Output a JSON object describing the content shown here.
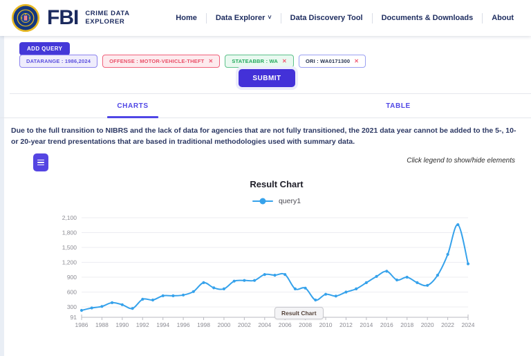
{
  "header": {
    "fbi": "FBI",
    "app_line1": "CRIME DATA",
    "app_line2": "EXPLORER",
    "nav": [
      {
        "label": "Home",
        "dropdown": false
      },
      {
        "label": "Data Explorer",
        "dropdown": true
      },
      {
        "label": "Data Discovery Tool",
        "dropdown": false
      },
      {
        "label": "Documents & Downloads",
        "dropdown": false
      },
      {
        "label": "About",
        "dropdown": false
      }
    ]
  },
  "icons": {
    "caret_down": "˅",
    "close": "✕"
  },
  "query_builder": {
    "add_query_label": "ADD QUERY",
    "filters": [
      {
        "label": "DATARANGE : 1986,2024",
        "color": "purple",
        "removable": false
      },
      {
        "label": "OFFENSE : MOTOR-VEHICLE-THEFT",
        "color": "red",
        "removable": true
      },
      {
        "label": "STATEABBR : WA",
        "color": "green",
        "removable": true
      },
      {
        "label": "ORI : WA0171300",
        "color": "dark",
        "removable": true
      }
    ],
    "submit_label": "SUBMIT"
  },
  "tabs": [
    {
      "label": "CHARTS",
      "active": true
    },
    {
      "label": "TABLE",
      "active": false
    }
  ],
  "notice": "Due to the full transition to NIBRS and the lack of data for agencies that are not fully transitioned, the 2021 data year cannot be added to the 5-, 10- or 20-year trend presentations that are based in traditional methodologies used with summary data.",
  "chart_section": {
    "legend_hint": "Click legend to show/hide elements",
    "title": "Result Chart",
    "tooltip": "Result Chart",
    "legend": [
      {
        "label": "query1",
        "color": "#36a2eb"
      }
    ]
  },
  "chart_data": {
    "type": "line",
    "title": "Result Chart",
    "smooth": true,
    "grid": true,
    "legend_position": "top",
    "x": [
      1986,
      1987,
      1988,
      1989,
      1990,
      1991,
      1992,
      1993,
      1994,
      1995,
      1996,
      1997,
      1998,
      1999,
      2000,
      2001,
      2002,
      2003,
      2004,
      2005,
      2006,
      2007,
      2008,
      2009,
      2010,
      2011,
      2012,
      2013,
      2014,
      2015,
      2016,
      2017,
      2018,
      2019,
      2020,
      2021,
      2022,
      2023,
      2024
    ],
    "series": [
      {
        "name": "query1",
        "color": "#36a2eb",
        "values": [
          230,
          280,
          310,
          385,
          345,
          270,
          455,
          440,
          525,
          525,
          540,
          610,
          790,
          685,
          665,
          820,
          835,
          835,
          955,
          940,
          955,
          665,
          680,
          440,
          555,
          520,
          600,
          665,
          790,
          915,
          1020,
          845,
          900,
          790,
          735,
          940,
          1360,
          1960,
          1170
        ]
      }
    ],
    "x_tick_labels": [
      "1986",
      "1988",
      "1990",
      "1992",
      "1994",
      "1996",
      "1998",
      "2000",
      "2002",
      "2004",
      "2006",
      "2008",
      "2010",
      "2012",
      "2014",
      "2016",
      "2018",
      "2020",
      "2022",
      "2024"
    ],
    "y_ticks": [
      91,
      300,
      600,
      900,
      1200,
      1500,
      1800,
      2100
    ],
    "y_tick_labels": [
      "91",
      "300",
      "600",
      "900",
      "1,200",
      "1,500",
      "1,800",
      "2,100"
    ],
    "ylim": [
      91,
      2100
    ],
    "xlabel": "",
    "ylabel": ""
  }
}
